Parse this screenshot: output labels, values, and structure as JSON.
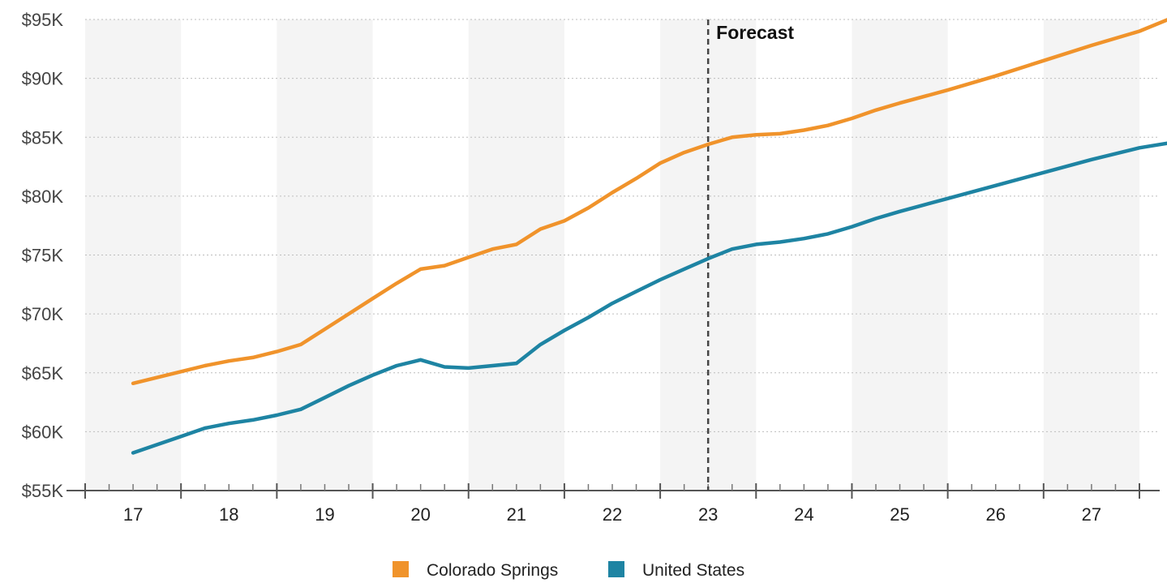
{
  "chart_data": {
    "type": "line",
    "x_unit": "year (2-digit)",
    "categories": [
      "17",
      "18",
      "19",
      "20",
      "21",
      "22",
      "23",
      "24",
      "25",
      "26",
      "27"
    ],
    "ylim": [
      55000,
      95000
    ],
    "yticks": [
      {
        "value": 55000,
        "label": "$55K"
      },
      {
        "value": 60000,
        "label": "$60K"
      },
      {
        "value": 65000,
        "label": "$65K"
      },
      {
        "value": 70000,
        "label": "$70K"
      },
      {
        "value": 75000,
        "label": "$75K"
      },
      {
        "value": 80000,
        "label": "$80K"
      },
      {
        "value": 85000,
        "label": "$85K"
      },
      {
        "value": 90000,
        "label": "$90K"
      },
      {
        "value": 95000,
        "label": "$95K"
      }
    ],
    "grid": true,
    "legend_position": "bottom-center",
    "annotation": {
      "label": "Forecast",
      "x": 2023.0
    },
    "series": [
      {
        "name": "Colorado Springs",
        "color": "#F0932B",
        "points": [
          [
            2017.0,
            64100
          ],
          [
            2017.25,
            64600
          ],
          [
            2017.5,
            65100
          ],
          [
            2017.75,
            65600
          ],
          [
            2018.0,
            66000
          ],
          [
            2018.25,
            66300
          ],
          [
            2018.5,
            66800
          ],
          [
            2018.75,
            67400
          ],
          [
            2019.0,
            68700
          ],
          [
            2019.25,
            70000
          ],
          [
            2019.5,
            71300
          ],
          [
            2019.75,
            72600
          ],
          [
            2020.0,
            73800
          ],
          [
            2020.25,
            74100
          ],
          [
            2020.5,
            74800
          ],
          [
            2020.75,
            75500
          ],
          [
            2021.0,
            75900
          ],
          [
            2021.25,
            77200
          ],
          [
            2021.5,
            77900
          ],
          [
            2021.75,
            79000
          ],
          [
            2022.0,
            80300
          ],
          [
            2022.25,
            81500
          ],
          [
            2022.5,
            82800
          ],
          [
            2022.75,
            83700
          ],
          [
            2023.0,
            84400
          ],
          [
            2023.25,
            85000
          ],
          [
            2023.5,
            85200
          ],
          [
            2023.75,
            85300
          ],
          [
            2024.0,
            85600
          ],
          [
            2024.25,
            86000
          ],
          [
            2024.5,
            86600
          ],
          [
            2024.75,
            87300
          ],
          [
            2025.0,
            87900
          ],
          [
            2025.5,
            89000
          ],
          [
            2026.0,
            90200
          ],
          [
            2026.5,
            91500
          ],
          [
            2027.0,
            92800
          ],
          [
            2027.5,
            94000
          ],
          [
            2027.8,
            95000
          ]
        ]
      },
      {
        "name": "United States",
        "color": "#1E84A3",
        "points": [
          [
            2017.0,
            58200
          ],
          [
            2017.25,
            58900
          ],
          [
            2017.5,
            59600
          ],
          [
            2017.75,
            60300
          ],
          [
            2018.0,
            60700
          ],
          [
            2018.25,
            61000
          ],
          [
            2018.5,
            61400
          ],
          [
            2018.75,
            61900
          ],
          [
            2019.0,
            62900
          ],
          [
            2019.25,
            63900
          ],
          [
            2019.5,
            64800
          ],
          [
            2019.75,
            65600
          ],
          [
            2020.0,
            66100
          ],
          [
            2020.25,
            65500
          ],
          [
            2020.5,
            65400
          ],
          [
            2020.75,
            65600
          ],
          [
            2021.0,
            65800
          ],
          [
            2021.25,
            67400
          ],
          [
            2021.5,
            68600
          ],
          [
            2021.75,
            69700
          ],
          [
            2022.0,
            70900
          ],
          [
            2022.25,
            71900
          ],
          [
            2022.5,
            72900
          ],
          [
            2022.75,
            73800
          ],
          [
            2023.0,
            74700
          ],
          [
            2023.25,
            75500
          ],
          [
            2023.5,
            75900
          ],
          [
            2023.75,
            76100
          ],
          [
            2024.0,
            76400
          ],
          [
            2024.25,
            76800
          ],
          [
            2024.5,
            77400
          ],
          [
            2024.75,
            78100
          ],
          [
            2025.0,
            78700
          ],
          [
            2025.5,
            79800
          ],
          [
            2026.0,
            80900
          ],
          [
            2026.5,
            82000
          ],
          [
            2027.0,
            83100
          ],
          [
            2027.5,
            84100
          ],
          [
            2027.8,
            84500
          ]
        ]
      }
    ]
  }
}
